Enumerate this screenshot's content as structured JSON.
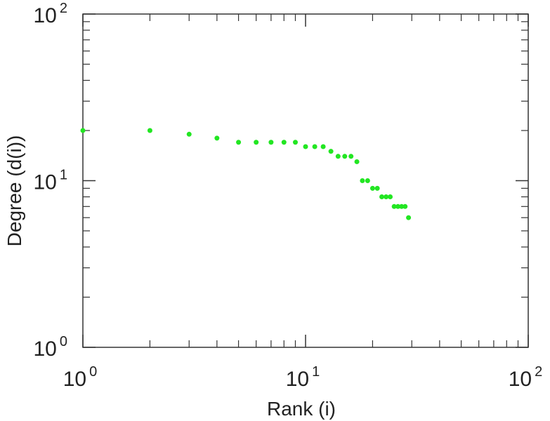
{
  "chart_data": {
    "type": "scatter",
    "xlabel": "Rank (i)",
    "ylabel": "Degree (d(i))",
    "x_scale": "log",
    "y_scale": "log",
    "xlim": [
      1,
      100
    ],
    "ylim": [
      1,
      100
    ],
    "grid": false,
    "point_color": "#22e622",
    "x_ticks": [
      {
        "base": "10",
        "exp": "0",
        "value": 1
      },
      {
        "base": "10",
        "exp": "1",
        "value": 10
      },
      {
        "base": "10",
        "exp": "2",
        "value": 100
      }
    ],
    "y_ticks": [
      {
        "base": "10",
        "exp": "0",
        "value": 1
      },
      {
        "base": "10",
        "exp": "1",
        "value": 10
      },
      {
        "base": "10",
        "exp": "2",
        "value": 100
      }
    ],
    "series": [
      {
        "x": [
          1,
          2,
          3,
          4,
          5,
          6,
          7,
          8,
          9,
          10,
          11,
          12,
          13,
          14,
          15,
          16,
          17,
          18,
          19,
          20,
          21,
          22,
          23,
          24,
          25,
          26,
          27,
          28,
          29
        ],
        "y": [
          20,
          20,
          19,
          18,
          17,
          17,
          17,
          17,
          17,
          16,
          16,
          16,
          15,
          14,
          14,
          14,
          13,
          10,
          10,
          9,
          9,
          8,
          8,
          8,
          7,
          7,
          7,
          7,
          6
        ]
      }
    ]
  }
}
